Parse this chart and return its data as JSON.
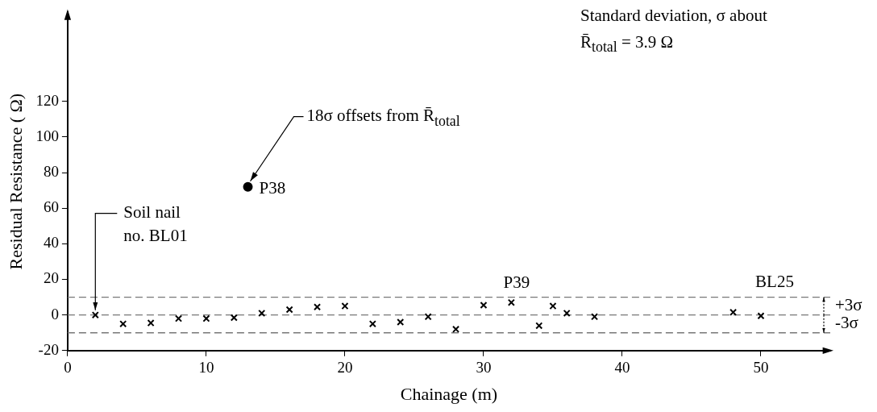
{
  "chart_data": {
    "type": "scatter",
    "xlabel": "Chainage (m)",
    "ylabel": "Residual Resistance ( Ω)",
    "series": [
      {
        "color": "#000000",
        "marker": "cross",
        "x": [
          2,
          4,
          6,
          8,
          10,
          12,
          14,
          16,
          18,
          20,
          22,
          24,
          26,
          28,
          30,
          32,
          34,
          35,
          36,
          38,
          48,
          50
        ],
        "values": [
          0,
          -5,
          -4.5,
          -2,
          -2,
          -1.5,
          1,
          3,
          4.5,
          5,
          -5,
          -4,
          -1,
          -8,
          5.5,
          7,
          -6,
          5,
          1,
          -1,
          1.5,
          -0.5
        ]
      },
      {
        "color": "#000000",
        "marker": "circle",
        "x": [
          13
        ],
        "values": [
          72
        ]
      }
    ],
    "xlim": [
      0,
      55
    ],
    "xticks": [
      0,
      10,
      20,
      30,
      40,
      50
    ],
    "ylim": [
      -20,
      170
    ],
    "yticks": [
      -20,
      0,
      20,
      40,
      60,
      80,
      100,
      120
    ],
    "grid": false,
    "legend": false,
    "ref_lines": [
      {
        "axis": "y",
        "value": 10,
        "color": "#777777",
        "line_style": "dashed"
      },
      {
        "axis": "y",
        "value": 0,
        "color": "#777777",
        "line_style": "dashed"
      },
      {
        "axis": "y",
        "value": -10,
        "color": "#777777",
        "line_style": "dashed"
      }
    ],
    "annotations": [
      "Standard deviation, σ about\nR̄$_{total}$ = 3.9 Ω",
      {
        "text": "18σ offsets from R̄$_{total}$",
        "x": 13,
        "y": 72
      },
      {
        "text": "P38",
        "x": 13,
        "y": 72
      },
      {
        "text": "Soil nail\nno. BL01",
        "x": 2,
        "y": 0
      },
      {
        "text": "P39",
        "x": 35,
        "y": 5
      },
      {
        "text": "BL25",
        "x": 50,
        "y": -0.5
      },
      "+3σ",
      "-3σ"
    ]
  }
}
